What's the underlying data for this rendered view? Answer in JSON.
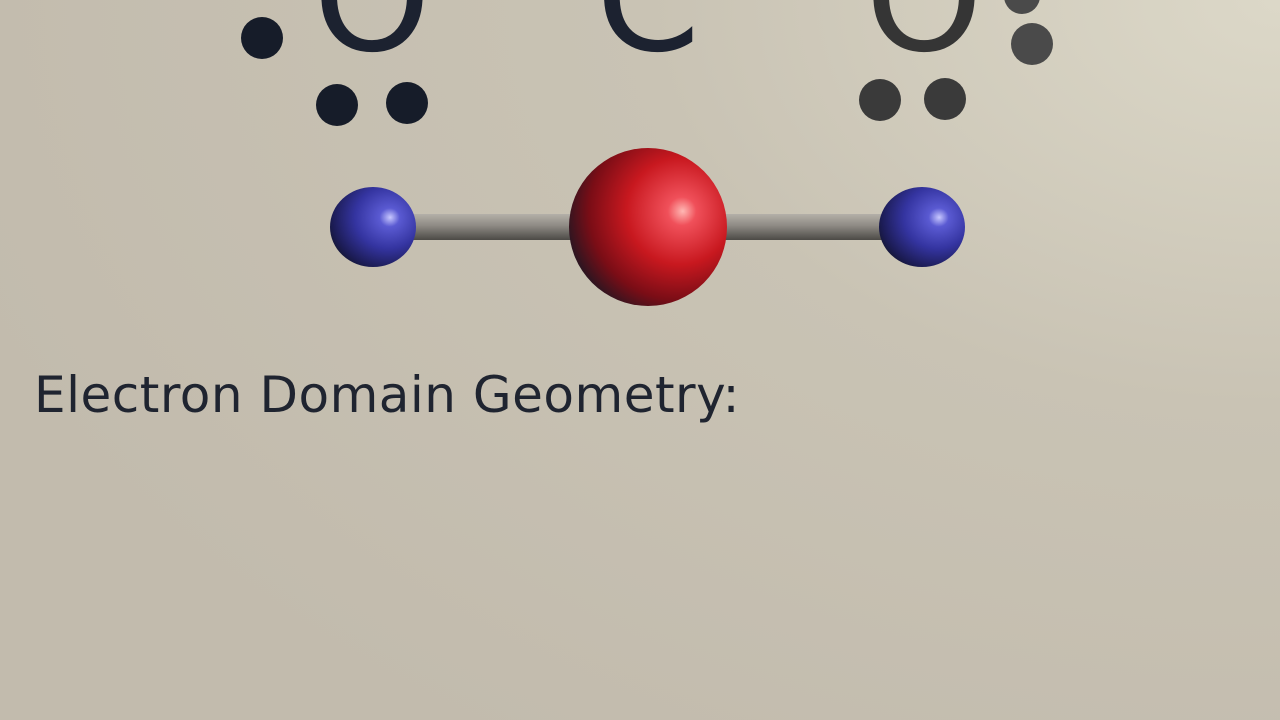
{
  "colors": {
    "background": "#c6c0b2",
    "ink": "#1c2230",
    "ink_faded": "#3c3c3c",
    "center_atom": "#c81e28",
    "outer_atom": "#3a3aa8",
    "bond": "#8a8680"
  },
  "lewis_structure": {
    "left_atom": "O",
    "center_atom": "C",
    "right_atom": "O",
    "bond_left": "=",
    "bond_right": "="
  },
  "model": {
    "center_atom_color": "red",
    "outer_atom_color": "blue",
    "outer_atom_count": 2
  },
  "caption": {
    "text": "Electron Domain Geometry:"
  }
}
